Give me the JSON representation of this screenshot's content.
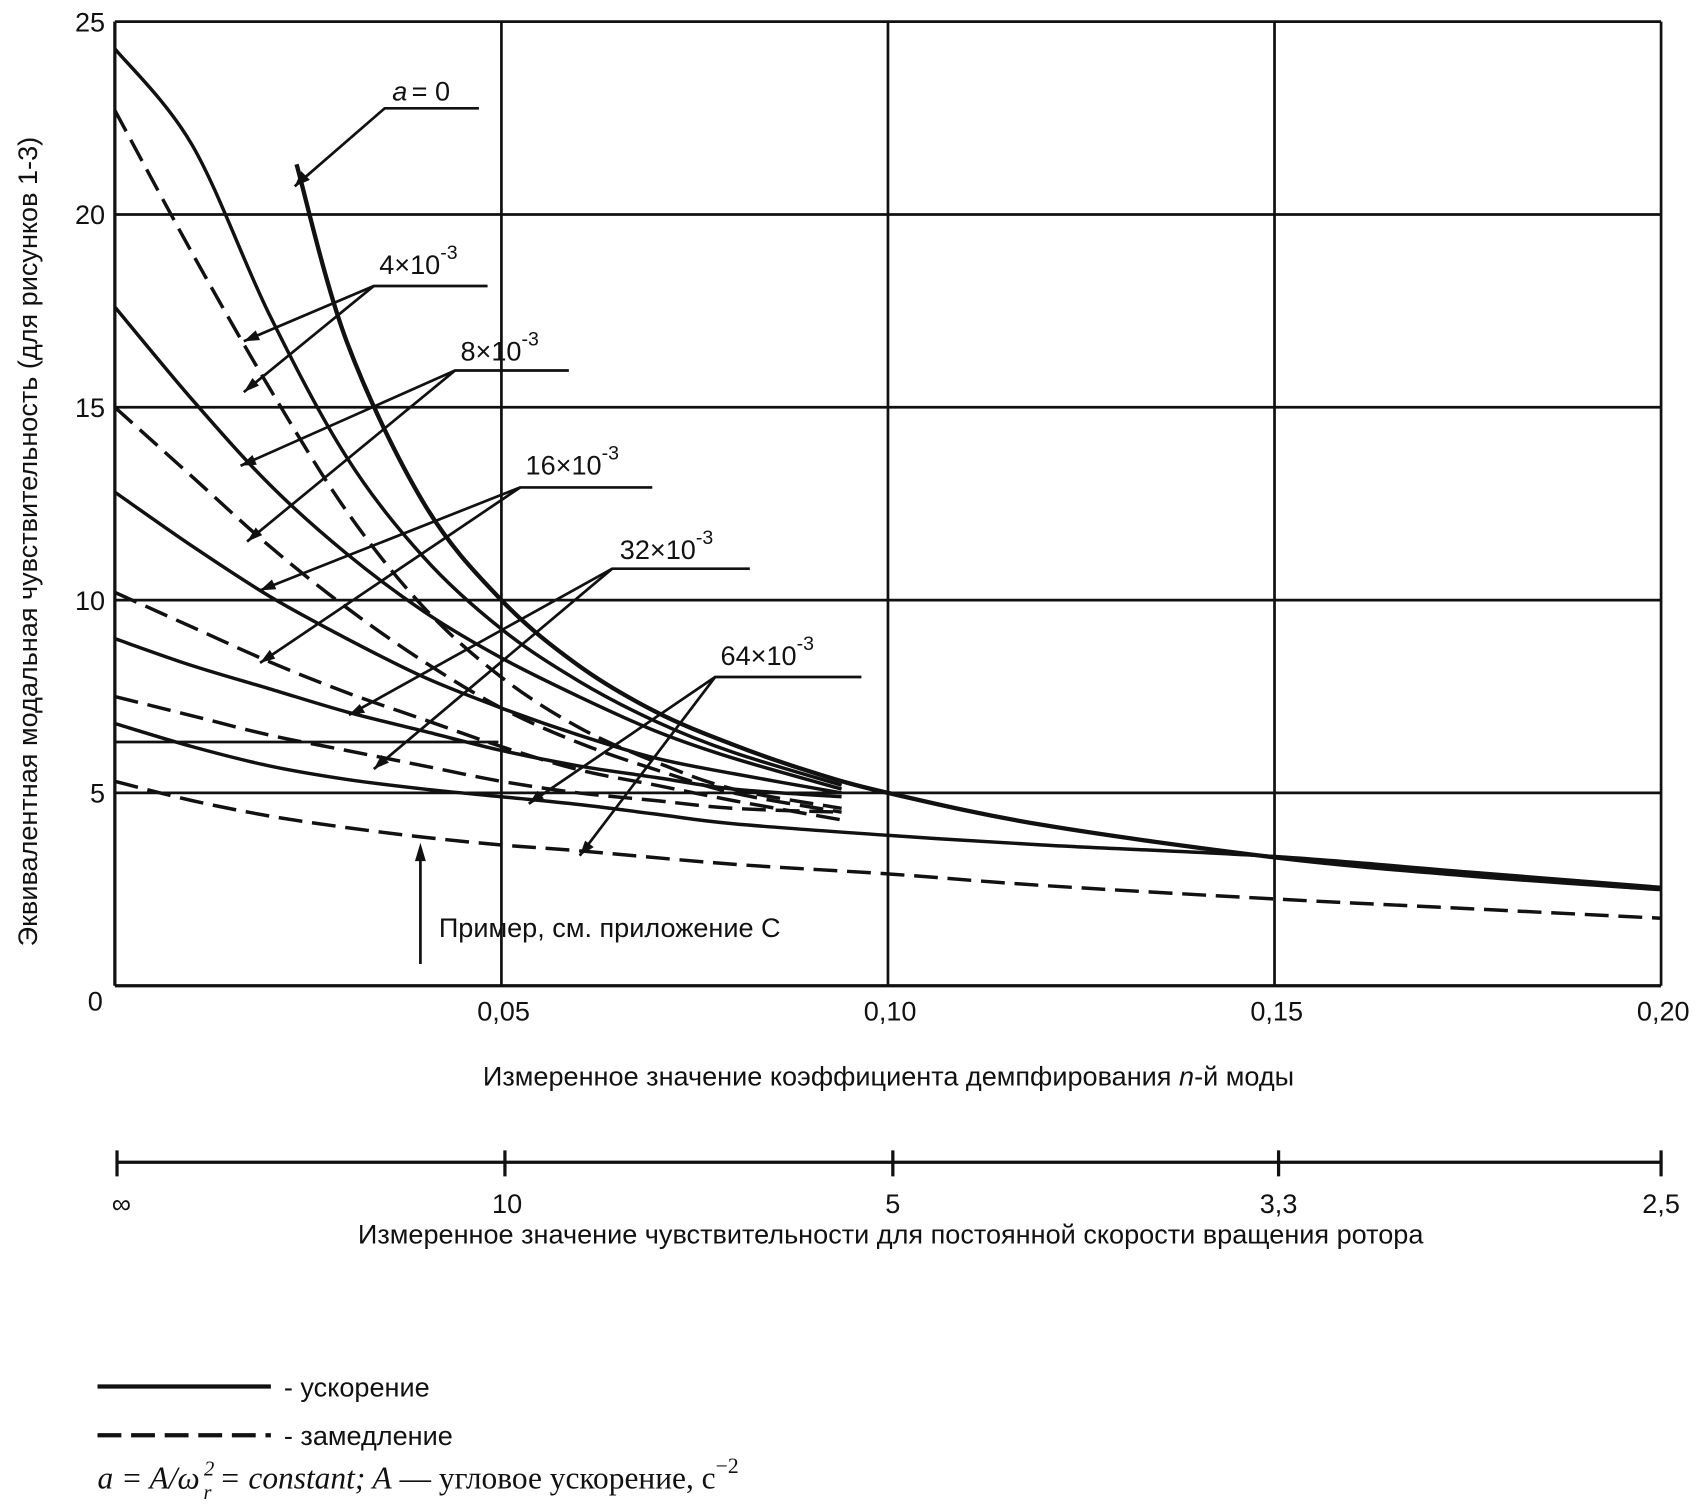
{
  "chart_data": {
    "type": "line",
    "xlabel": "Измеренное значение коэффициента демпфирования n-й моды",
    "xlabel_parts": [
      "Измеренное значение коэффициента демпфирования ",
      "n",
      "-й моды"
    ],
    "ylabel": "Эквивалентная модальная чувствительность (для рисунков 1-3)",
    "xlim": [
      0,
      0.2
    ],
    "ylim": [
      0,
      25
    ],
    "x_ticks": [
      0,
      0.05,
      0.1,
      0.15,
      0.2
    ],
    "x_tick_labels": [
      "0,05",
      "0,10",
      "0,15",
      "0,20"
    ],
    "y_ticks": [
      0,
      5,
      10,
      15,
      20,
      25
    ],
    "y_tick_labels": [
      "0",
      "5",
      "10",
      "15",
      "20",
      "25"
    ],
    "grid": true,
    "secondary_axis": {
      "label": "Измеренное значение чувствительности для постоянной скорости вращения ротора",
      "ticks_at_x": [
        0,
        0.05,
        0.1,
        0.15,
        0.2
      ],
      "tick_labels": [
        "∞",
        "10",
        "5",
        "3,3",
        "2,5"
      ]
    },
    "series": [
      {
        "name": "a = 0",
        "style": "solid",
        "x": [
          0.0235,
          0.03,
          0.04,
          0.05,
          0.06,
          0.07,
          0.08,
          0.09,
          0.1,
          0.12,
          0.15,
          0.175,
          0.2
        ],
        "y": [
          21.3,
          16.7,
          12.5,
          10.0,
          8.3,
          7.1,
          6.25,
          5.55,
          5.0,
          4.17,
          3.33,
          2.86,
          2.5
        ]
      },
      {
        "name": "4×10-3 ускорение",
        "style": "solid",
        "x": [
          0,
          0.01,
          0.02,
          0.03,
          0.04,
          0.05,
          0.06,
          0.07,
          0.08,
          0.094
        ],
        "y": [
          24.3,
          21.8,
          17.4,
          13.7,
          11.1,
          9.25,
          7.9,
          6.85,
          6.05,
          5.2
        ]
      },
      {
        "name": "4×10-3 замедление",
        "style": "dashed",
        "x": [
          0,
          0.01,
          0.02,
          0.03,
          0.04,
          0.05,
          0.06,
          0.07,
          0.08,
          0.094
        ],
        "y": [
          22.7,
          19.0,
          15.5,
          12.3,
          9.8,
          8.0,
          6.7,
          5.8,
          5.1,
          4.6
        ]
      },
      {
        "name": "8×10-3 ускорение",
        "style": "solid",
        "x": [
          0,
          0.01,
          0.02,
          0.03,
          0.04,
          0.05,
          0.06,
          0.07,
          0.08,
          0.094
        ],
        "y": [
          17.6,
          15.2,
          13.0,
          11.2,
          9.7,
          8.5,
          7.5,
          6.6,
          5.9,
          5.1
        ]
      },
      {
        "name": "8×10-3 замедление",
        "style": "dashed",
        "x": [
          0,
          0.01,
          0.02,
          0.03,
          0.04,
          0.05,
          0.06,
          0.07,
          0.08,
          0.094
        ],
        "y": [
          15.0,
          13.2,
          11.4,
          9.8,
          8.4,
          7.2,
          6.3,
          5.6,
          5.0,
          4.5
        ]
      },
      {
        "name": "16×10-3 ускорение",
        "style": "solid",
        "x": [
          0,
          0.01,
          0.02,
          0.03,
          0.04,
          0.05,
          0.06,
          0.07,
          0.08,
          0.094
        ],
        "y": [
          12.8,
          11.4,
          10.1,
          9.0,
          8.0,
          7.2,
          6.5,
          5.9,
          5.5,
          5.0
        ]
      },
      {
        "name": "16×10-3 замедление",
        "style": "dashed",
        "x": [
          0,
          0.01,
          0.02,
          0.03,
          0.04,
          0.05,
          0.06,
          0.07,
          0.08,
          0.094
        ],
        "y": [
          10.2,
          9.3,
          8.4,
          7.6,
          6.9,
          6.2,
          5.6,
          5.2,
          4.8,
          4.3
        ]
      },
      {
        "name": "32×10-3 ускорение",
        "style": "solid",
        "x": [
          0,
          0.01,
          0.02,
          0.03,
          0.04,
          0.05,
          0.06,
          0.07,
          0.08,
          0.094
        ],
        "y": [
          9.0,
          8.3,
          7.7,
          7.1,
          6.6,
          6.1,
          5.7,
          5.4,
          5.1,
          4.9
        ]
      },
      {
        "name": "32×10-3 замедление",
        "style": "dashed",
        "x": [
          0,
          0.01,
          0.02,
          0.03,
          0.04,
          0.05,
          0.06,
          0.07,
          0.08,
          0.094
        ],
        "y": [
          7.5,
          7.0,
          6.5,
          6.1,
          5.7,
          5.3,
          5.0,
          4.8,
          4.6,
          4.5
        ]
      },
      {
        "name": "64×10-3 ускорение",
        "style": "solid",
        "x": [
          0,
          0.01,
          0.02,
          0.03,
          0.04,
          0.05,
          0.06,
          0.07,
          0.08,
          0.1,
          0.12,
          0.15,
          0.175,
          0.2
        ],
        "y": [
          6.8,
          6.2,
          5.7,
          5.35,
          5.1,
          4.9,
          4.7,
          4.45,
          4.2,
          3.9,
          3.65,
          3.35,
          2.95,
          2.55
        ]
      },
      {
        "name": "64×10-3 замедление",
        "style": "dashed",
        "x": [
          0,
          0.01,
          0.02,
          0.03,
          0.04,
          0.05,
          0.06,
          0.08,
          0.1,
          0.12,
          0.15,
          0.175,
          0.2
        ],
        "y": [
          5.3,
          4.8,
          4.4,
          4.1,
          3.85,
          3.65,
          3.5,
          3.15,
          2.9,
          2.6,
          2.25,
          2.0,
          1.75
        ]
      }
    ],
    "annotations": {
      "a0": "a = 0",
      "a4": {
        "base": "4×10",
        "exp": "-3"
      },
      "a8": {
        "base": "8×10",
        "exp": "-3"
      },
      "a16": {
        "base": "16×10",
        "exp": "-3"
      },
      "a32": {
        "base": "32×10",
        "exp": "-3"
      },
      "a64": {
        "base": "64×10",
        "exp": "-3"
      },
      "example": "Пример, см. приложение С"
    },
    "legend": {
      "solid": "- ускорение",
      "dashed": "- замедление",
      "formula_a": "a = A/ω",
      "formula_sup": "2",
      "formula_sub": "r",
      "formula_rest": " = constant;  A",
      "formula_text": " — угловое ускорение, с",
      "formula_exp": "−2"
    }
  }
}
